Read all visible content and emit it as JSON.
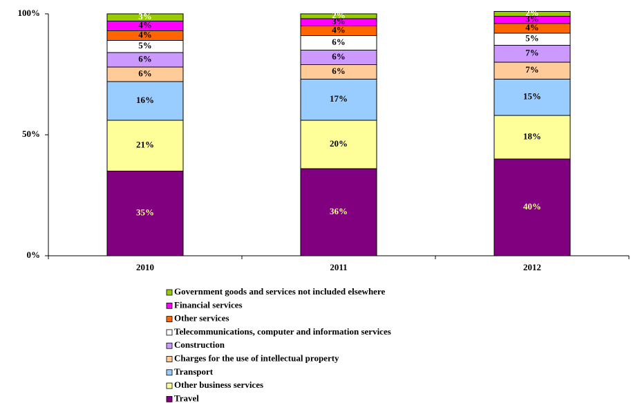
{
  "chart_data": {
    "type": "stacked_bar",
    "categories": [
      "2010",
      "2011",
      "2012"
    ],
    "ylim": [
      0,
      100
    ],
    "yticks": [
      {
        "value": 0,
        "label": "0%"
      },
      {
        "value": 50,
        "label": "50%"
      },
      {
        "value": 100,
        "label": "100%"
      }
    ],
    "series": [
      {
        "name": "Travel",
        "color": "#800080",
        "label_color": "#ffff99",
        "values": [
          35,
          36,
          40
        ],
        "value_labels": [
          "35%",
          "36%",
          "40%"
        ]
      },
      {
        "name": "Other business services",
        "color": "#ffff99",
        "label_color": "#000000",
        "values": [
          21,
          20,
          18
        ],
        "value_labels": [
          "21%",
          "20%",
          "18%"
        ]
      },
      {
        "name": "Transport",
        "color": "#99ccff",
        "label_color": "#000000",
        "values": [
          16,
          17,
          15
        ],
        "value_labels": [
          "16%",
          "17%",
          "15%"
        ]
      },
      {
        "name": "Charges for the use of intellectual property",
        "color": "#ffcc99",
        "label_color": "#000000",
        "values": [
          6,
          6,
          7
        ],
        "value_labels": [
          "6%",
          "6%",
          "7%"
        ]
      },
      {
        "name": "Construction",
        "color": "#cc99ff",
        "label_color": "#000000",
        "values": [
          6,
          6,
          7
        ],
        "value_labels": [
          "6%",
          "6%",
          "7%"
        ]
      },
      {
        "name": "Telecommunications, computer and information services",
        "color": "#ffffff",
        "label_color": "#000000",
        "values": [
          5,
          6,
          5
        ],
        "value_labels": [
          "5%",
          "6%",
          "5%"
        ]
      },
      {
        "name": "Other services",
        "color": "#ff6600",
        "label_color": "#000000",
        "values": [
          4,
          4,
          4
        ],
        "value_labels": [
          "4%",
          "4%",
          "4%"
        ]
      },
      {
        "name": "Financial services",
        "color": "#ff00ff",
        "label_color": "#000000",
        "values": [
          4,
          3,
          3
        ],
        "value_labels": [
          "4%",
          "3%",
          "3%"
        ]
      },
      {
        "name": "Government goods and services not included elsewhere",
        "color": "#99cc00",
        "label_color": "#ffffff",
        "values": [
          3,
          2,
          2
        ],
        "value_labels": [
          "3%",
          "2%",
          "2%"
        ]
      }
    ]
  }
}
